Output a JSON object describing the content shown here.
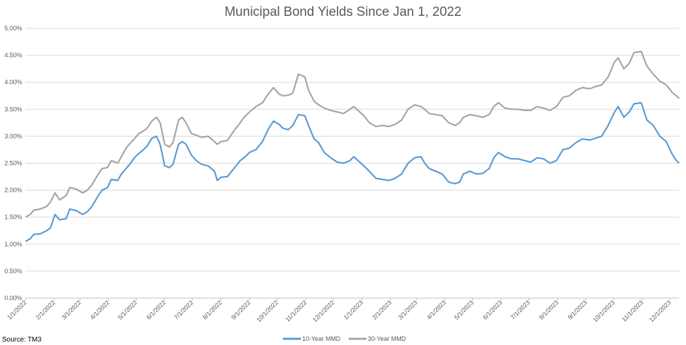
{
  "chart_data": {
    "type": "line",
    "title": "Municipal Bond Yields Since Jan 1, 2022",
    "source": "Source: TM3",
    "xlabel": "",
    "ylabel": "",
    "ylim": [
      0,
      5
    ],
    "y_ticks": [
      "0.00%",
      "0.50%",
      "1.00%",
      "1.50%",
      "2.00%",
      "2.50%",
      "3.00%",
      "3.50%",
      "4.00%",
      "4.50%",
      "5.00%"
    ],
    "x_ticks": [
      "1/1/2022",
      "2/1/2022",
      "3/1/2022",
      "4/1/2022",
      "5/1/2022",
      "6/1/2022",
      "7/1/2022",
      "8/1/2022",
      "9/1/2022",
      "10/1/2022",
      "11/1/2022",
      "12/1/2022",
      "1/1/2023",
      "2/1/2023",
      "3/1/2023",
      "4/1/2023",
      "5/1/2023",
      "6/1/2023",
      "7/1/2023",
      "8/1/2023",
      "9/1/2023",
      "10/1/2023",
      "11/1/2023",
      "12/1/2023"
    ],
    "grid": true,
    "legend_position": "bottom",
    "series": [
      {
        "name": "10-Year MMD",
        "color": "#5b9bd5",
        "points": [
          [
            "2022-01-01",
            1.05
          ],
          [
            "2022-01-06",
            1.1
          ],
          [
            "2022-01-10",
            1.18
          ],
          [
            "2022-01-17",
            1.19
          ],
          [
            "2022-01-24",
            1.25
          ],
          [
            "2022-01-28",
            1.3
          ],
          [
            "2022-02-02",
            1.55
          ],
          [
            "2022-02-07",
            1.45
          ],
          [
            "2022-02-14",
            1.47
          ],
          [
            "2022-02-18",
            1.65
          ],
          [
            "2022-02-25",
            1.62
          ],
          [
            "2022-03-04",
            1.55
          ],
          [
            "2022-03-09",
            1.6
          ],
          [
            "2022-03-14",
            1.7
          ],
          [
            "2022-03-21",
            1.9
          ],
          [
            "2022-03-25",
            2.0
          ],
          [
            "2022-03-31",
            2.05
          ],
          [
            "2022-04-04",
            2.2
          ],
          [
            "2022-04-11",
            2.18
          ],
          [
            "2022-04-15",
            2.3
          ],
          [
            "2022-04-20",
            2.4
          ],
          [
            "2022-04-25",
            2.5
          ],
          [
            "2022-04-29",
            2.6
          ],
          [
            "2022-05-04",
            2.68
          ],
          [
            "2022-05-09",
            2.75
          ],
          [
            "2022-05-13",
            2.82
          ],
          [
            "2022-05-18",
            2.96
          ],
          [
            "2022-05-23",
            3.0
          ],
          [
            "2022-05-27",
            2.85
          ],
          [
            "2022-06-01",
            2.45
          ],
          [
            "2022-06-06",
            2.42
          ],
          [
            "2022-06-10",
            2.48
          ],
          [
            "2022-06-16",
            2.85
          ],
          [
            "2022-06-20",
            2.9
          ],
          [
            "2022-06-24",
            2.85
          ],
          [
            "2022-06-30",
            2.65
          ],
          [
            "2022-07-05",
            2.55
          ],
          [
            "2022-07-11",
            2.48
          ],
          [
            "2022-07-18",
            2.45
          ],
          [
            "2022-07-25",
            2.35
          ],
          [
            "2022-07-28",
            2.18
          ],
          [
            "2022-08-01",
            2.24
          ],
          [
            "2022-08-08",
            2.25
          ],
          [
            "2022-08-15",
            2.4
          ],
          [
            "2022-08-22",
            2.55
          ],
          [
            "2022-08-26",
            2.6
          ],
          [
            "2022-09-01",
            2.7
          ],
          [
            "2022-09-08",
            2.75
          ],
          [
            "2022-09-15",
            2.9
          ],
          [
            "2022-09-22",
            3.15
          ],
          [
            "2022-09-27",
            3.28
          ],
          [
            "2022-10-03",
            3.22
          ],
          [
            "2022-10-07",
            3.15
          ],
          [
            "2022-10-13",
            3.12
          ],
          [
            "2022-10-18",
            3.2
          ],
          [
            "2022-10-24",
            3.4
          ],
          [
            "2022-10-31",
            3.38
          ],
          [
            "2022-11-04",
            3.2
          ],
          [
            "2022-11-10",
            2.95
          ],
          [
            "2022-11-15",
            2.88
          ],
          [
            "2022-11-21",
            2.7
          ],
          [
            "2022-11-28",
            2.6
          ],
          [
            "2022-12-05",
            2.52
          ],
          [
            "2022-12-12",
            2.5
          ],
          [
            "2022-12-19",
            2.55
          ],
          [
            "2022-12-23",
            2.62
          ],
          [
            "2023-01-03",
            2.45
          ],
          [
            "2023-01-09",
            2.35
          ],
          [
            "2023-01-16",
            2.22
          ],
          [
            "2023-01-23",
            2.2
          ],
          [
            "2023-01-30",
            2.18
          ],
          [
            "2023-02-06",
            2.22
          ],
          [
            "2023-02-13",
            2.3
          ],
          [
            "2023-02-20",
            2.5
          ],
          [
            "2023-02-27",
            2.6
          ],
          [
            "2023-03-06",
            2.62
          ],
          [
            "2023-03-10",
            2.5
          ],
          [
            "2023-03-15",
            2.4
          ],
          [
            "2023-03-22",
            2.35
          ],
          [
            "2023-03-29",
            2.3
          ],
          [
            "2023-04-05",
            2.15
          ],
          [
            "2023-04-12",
            2.12
          ],
          [
            "2023-04-17",
            2.15
          ],
          [
            "2023-04-21",
            2.3
          ],
          [
            "2023-04-28",
            2.35
          ],
          [
            "2023-05-05",
            2.3
          ],
          [
            "2023-05-12",
            2.31
          ],
          [
            "2023-05-19",
            2.4
          ],
          [
            "2023-05-24",
            2.6
          ],
          [
            "2023-05-29",
            2.7
          ],
          [
            "2023-06-05",
            2.62
          ],
          [
            "2023-06-12",
            2.58
          ],
          [
            "2023-06-19",
            2.58
          ],
          [
            "2023-06-26",
            2.55
          ],
          [
            "2023-07-03",
            2.52
          ],
          [
            "2023-07-10",
            2.6
          ],
          [
            "2023-07-17",
            2.58
          ],
          [
            "2023-07-24",
            2.5
          ],
          [
            "2023-07-31",
            2.55
          ],
          [
            "2023-08-07",
            2.75
          ],
          [
            "2023-08-14",
            2.78
          ],
          [
            "2023-08-21",
            2.88
          ],
          [
            "2023-08-28",
            2.95
          ],
          [
            "2023-09-05",
            2.93
          ],
          [
            "2023-09-11",
            2.96
          ],
          [
            "2023-09-18",
            3.0
          ],
          [
            "2023-09-25",
            3.2
          ],
          [
            "2023-10-02",
            3.45
          ],
          [
            "2023-10-06",
            3.55
          ],
          [
            "2023-10-12",
            3.35
          ],
          [
            "2023-10-18",
            3.45
          ],
          [
            "2023-10-23",
            3.6
          ],
          [
            "2023-10-31",
            3.62
          ],
          [
            "2023-11-06",
            3.3
          ],
          [
            "2023-11-13",
            3.2
          ],
          [
            "2023-11-20",
            3.0
          ],
          [
            "2023-11-27",
            2.9
          ],
          [
            "2023-12-04",
            2.65
          ],
          [
            "2023-12-08",
            2.55
          ],
          [
            "2023-12-11",
            2.5
          ]
        ]
      },
      {
        "name": "30-Year MMD",
        "color": "#a5a5a5",
        "points": [
          [
            "2022-01-01",
            1.5
          ],
          [
            "2022-01-06",
            1.55
          ],
          [
            "2022-01-10",
            1.63
          ],
          [
            "2022-01-17",
            1.65
          ],
          [
            "2022-01-24",
            1.7
          ],
          [
            "2022-01-28",
            1.78
          ],
          [
            "2022-02-02",
            1.95
          ],
          [
            "2022-02-07",
            1.82
          ],
          [
            "2022-02-14",
            1.9
          ],
          [
            "2022-02-18",
            2.05
          ],
          [
            "2022-02-25",
            2.02
          ],
          [
            "2022-03-04",
            1.95
          ],
          [
            "2022-03-09",
            2.0
          ],
          [
            "2022-03-14",
            2.1
          ],
          [
            "2022-03-21",
            2.3
          ],
          [
            "2022-03-25",
            2.4
          ],
          [
            "2022-03-31",
            2.42
          ],
          [
            "2022-04-04",
            2.55
          ],
          [
            "2022-04-11",
            2.5
          ],
          [
            "2022-04-15",
            2.62
          ],
          [
            "2022-04-20",
            2.78
          ],
          [
            "2022-04-25",
            2.88
          ],
          [
            "2022-04-29",
            2.95
          ],
          [
            "2022-05-04",
            3.05
          ],
          [
            "2022-05-09",
            3.1
          ],
          [
            "2022-05-13",
            3.15
          ],
          [
            "2022-05-18",
            3.28
          ],
          [
            "2022-05-23",
            3.35
          ],
          [
            "2022-05-27",
            3.25
          ],
          [
            "2022-06-01",
            2.85
          ],
          [
            "2022-06-06",
            2.8
          ],
          [
            "2022-06-10",
            2.88
          ],
          [
            "2022-06-16",
            3.3
          ],
          [
            "2022-06-20",
            3.35
          ],
          [
            "2022-06-24",
            3.25
          ],
          [
            "2022-06-30",
            3.05
          ],
          [
            "2022-07-05",
            3.02
          ],
          [
            "2022-07-11",
            2.98
          ],
          [
            "2022-07-18",
            3.0
          ],
          [
            "2022-07-25",
            2.9
          ],
          [
            "2022-07-28",
            2.85
          ],
          [
            "2022-08-01",
            2.9
          ],
          [
            "2022-08-08",
            2.92
          ],
          [
            "2022-08-15",
            3.1
          ],
          [
            "2022-08-22",
            3.25
          ],
          [
            "2022-08-26",
            3.35
          ],
          [
            "2022-09-01",
            3.45
          ],
          [
            "2022-09-08",
            3.55
          ],
          [
            "2022-09-15",
            3.62
          ],
          [
            "2022-09-22",
            3.8
          ],
          [
            "2022-09-27",
            3.9
          ],
          [
            "2022-10-03",
            3.78
          ],
          [
            "2022-10-07",
            3.75
          ],
          [
            "2022-10-13",
            3.76
          ],
          [
            "2022-10-18",
            3.8
          ],
          [
            "2022-10-24",
            4.15
          ],
          [
            "2022-10-31",
            4.1
          ],
          [
            "2022-11-04",
            3.85
          ],
          [
            "2022-11-10",
            3.65
          ],
          [
            "2022-11-15",
            3.58
          ],
          [
            "2022-11-21",
            3.52
          ],
          [
            "2022-11-28",
            3.48
          ],
          [
            "2022-12-05",
            3.45
          ],
          [
            "2022-12-12",
            3.42
          ],
          [
            "2022-12-19",
            3.5
          ],
          [
            "2022-12-23",
            3.55
          ],
          [
            "2023-01-03",
            3.38
          ],
          [
            "2023-01-09",
            3.25
          ],
          [
            "2023-01-16",
            3.18
          ],
          [
            "2023-01-23",
            3.2
          ],
          [
            "2023-01-30",
            3.18
          ],
          [
            "2023-02-06",
            3.22
          ],
          [
            "2023-02-13",
            3.3
          ],
          [
            "2023-02-20",
            3.5
          ],
          [
            "2023-02-27",
            3.58
          ],
          [
            "2023-03-06",
            3.55
          ],
          [
            "2023-03-10",
            3.5
          ],
          [
            "2023-03-15",
            3.42
          ],
          [
            "2023-03-22",
            3.4
          ],
          [
            "2023-03-29",
            3.38
          ],
          [
            "2023-04-05",
            3.25
          ],
          [
            "2023-04-12",
            3.2
          ],
          [
            "2023-04-17",
            3.25
          ],
          [
            "2023-04-21",
            3.35
          ],
          [
            "2023-04-28",
            3.4
          ],
          [
            "2023-05-05",
            3.38
          ],
          [
            "2023-05-12",
            3.35
          ],
          [
            "2023-05-19",
            3.4
          ],
          [
            "2023-05-24",
            3.55
          ],
          [
            "2023-05-29",
            3.62
          ],
          [
            "2023-06-05",
            3.52
          ],
          [
            "2023-06-12",
            3.5
          ],
          [
            "2023-06-19",
            3.5
          ],
          [
            "2023-06-26",
            3.48
          ],
          [
            "2023-07-03",
            3.48
          ],
          [
            "2023-07-10",
            3.55
          ],
          [
            "2023-07-17",
            3.52
          ],
          [
            "2023-07-24",
            3.48
          ],
          [
            "2023-07-31",
            3.55
          ],
          [
            "2023-08-07",
            3.72
          ],
          [
            "2023-08-14",
            3.75
          ],
          [
            "2023-08-21",
            3.85
          ],
          [
            "2023-08-28",
            3.9
          ],
          [
            "2023-09-05",
            3.88
          ],
          [
            "2023-09-11",
            3.92
          ],
          [
            "2023-09-18",
            3.95
          ],
          [
            "2023-09-25",
            4.1
          ],
          [
            "2023-10-02",
            4.38
          ],
          [
            "2023-10-06",
            4.45
          ],
          [
            "2023-10-12",
            4.25
          ],
          [
            "2023-10-18",
            4.35
          ],
          [
            "2023-10-23",
            4.55
          ],
          [
            "2023-10-31",
            4.57
          ],
          [
            "2023-11-06",
            4.3
          ],
          [
            "2023-11-13",
            4.15
          ],
          [
            "2023-11-20",
            4.02
          ],
          [
            "2023-11-27",
            3.95
          ],
          [
            "2023-12-04",
            3.8
          ],
          [
            "2023-12-08",
            3.75
          ],
          [
            "2023-12-11",
            3.7
          ]
        ]
      }
    ]
  }
}
